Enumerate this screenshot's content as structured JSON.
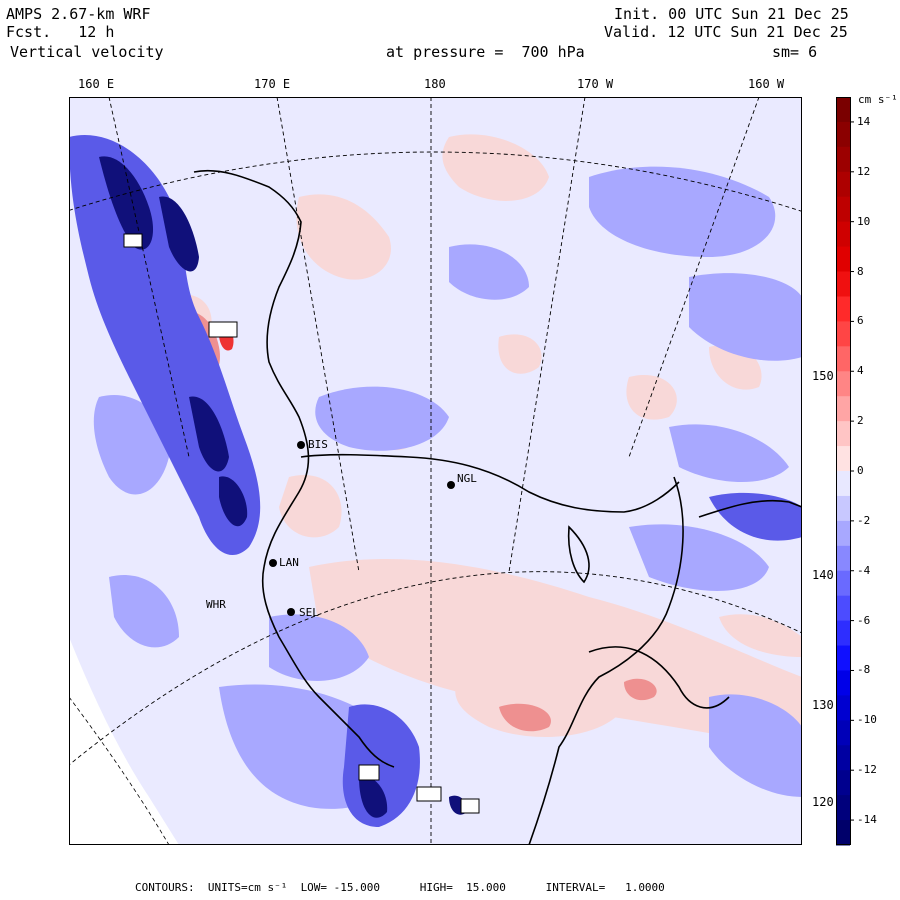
{
  "header": {
    "model": "AMPS 2.67-km WRF",
    "forecast": "Fcst.   12 h",
    "field": "Vertical velocity",
    "init": "Init. 00 UTC Sun 21 Dec 25",
    "valid": "Valid. 12 UTC Sun 21 Dec 25",
    "pressure": "at pressure =  700 hPa",
    "smoothing": "sm= 6"
  },
  "axes": {
    "top_longitudes": [
      "160 E",
      "170 E",
      "180",
      "170 W",
      "160 W"
    ],
    "right_longitudes": [
      "150 W",
      "140 W",
      "130 W",
      "120 W"
    ]
  },
  "stations": [
    {
      "id": "BIS",
      "label": "BIS"
    },
    {
      "id": "NGL",
      "label": "NGL"
    },
    {
      "id": "LAN",
      "label": "LAN"
    },
    {
      "id": "SEL",
      "label": "SEL"
    },
    {
      "id": "WHR",
      "label": "WHR"
    }
  ],
  "colorbar": {
    "unit_label": "cm s⁻¹",
    "tick_labels": [
      "14",
      "12",
      "10",
      "8",
      "6",
      "4",
      "2",
      "0",
      "-2",
      "-4",
      "-6",
      "-8",
      "-10",
      "-12",
      "-14"
    ],
    "levels": [
      15,
      14,
      13,
      12,
      11,
      10,
      9,
      8,
      7,
      6,
      5,
      4,
      3,
      2,
      1,
      0,
      -1,
      -2,
      -3,
      -4,
      -5,
      -6,
      -7,
      -8,
      -9,
      -10,
      -11,
      -12,
      -13,
      -14,
      -15
    ],
    "colors": [
      "#7a0000",
      "#8b0000",
      "#9c0000",
      "#ad0000",
      "#be0000",
      "#cf0000",
      "#e00000",
      "#f01010",
      "#ff2a2a",
      "#ff4545",
      "#ff6666",
      "#ff8585",
      "#ffa5a5",
      "#ffc5c5",
      "#ffe2e2",
      "#e8e8ff",
      "#c8c8ff",
      "#a8a8ff",
      "#8888ff",
      "#6a6aff",
      "#4c4cff",
      "#2e2eff",
      "#1010ff",
      "#0000e8",
      "#0000d0",
      "#0000b8",
      "#0000a2",
      "#00008e",
      "#00007c",
      "#00006a"
    ]
  },
  "footer": {
    "contours": "CONTOURS:  UNITS=cm s⁻¹  LOW= -15.000      HIGH=  15.000      INTERVAL=   1.0000"
  },
  "colors": {
    "background": "#eaeaff",
    "positive": "#f8d8d8",
    "negative": "#8888ee",
    "land_white": "#ffffff"
  }
}
